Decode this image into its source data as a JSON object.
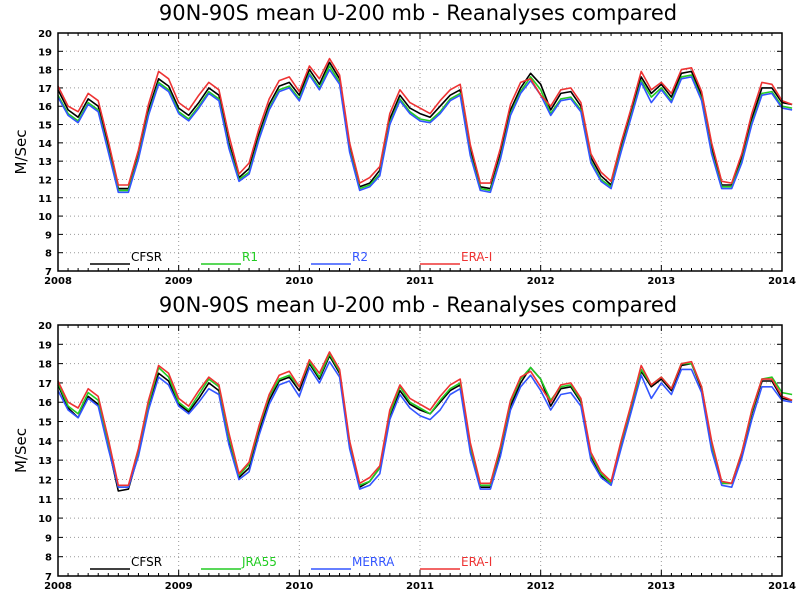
{
  "chart_data": [
    {
      "type": "line",
      "title": "90N-90S mean U-200 mb - Reanalyses compared",
      "xlabel": "",
      "ylabel": "M/Sec",
      "xlim": [
        2008.0,
        2014.0
      ],
      "ylim": [
        7,
        20
      ],
      "y_ticks": [
        7,
        8,
        9,
        10,
        11,
        12,
        13,
        14,
        15,
        16,
        17,
        18,
        19,
        20
      ],
      "x_ticks": [
        "2008",
        "2009",
        "2010",
        "2011",
        "2012",
        "2013",
        "2014"
      ],
      "grid": true,
      "legend_position": "bottom-left",
      "x_start": 2008.0,
      "x_step_months": 1,
      "series": [
        {
          "name": "CFSR",
          "color": "#000000",
          "values": [
            16.9,
            15.8,
            15.4,
            16.4,
            16.0,
            13.8,
            11.5,
            11.5,
            13.3,
            15.8,
            17.5,
            17.1,
            15.9,
            15.5,
            16.2,
            17.0,
            16.6,
            14.0,
            12.1,
            12.6,
            14.5,
            16.1,
            17.1,
            17.3,
            16.6,
            18.0,
            17.2,
            18.4,
            17.5,
            13.8,
            11.6,
            11.8,
            12.5,
            15.3,
            16.6,
            15.9,
            15.6,
            15.4,
            16.0,
            16.6,
            16.9,
            13.6,
            11.6,
            11.5,
            13.4,
            15.8,
            17.0,
            17.8,
            17.2,
            15.8,
            16.7,
            16.8,
            16.0,
            13.2,
            12.2,
            11.7,
            13.8,
            15.7,
            17.6,
            16.7,
            17.2,
            16.5,
            17.8,
            17.9,
            16.6,
            13.7,
            11.7,
            11.7,
            13.2,
            15.3,
            17.0,
            17.0,
            16.2,
            16.1
          ]
        },
        {
          "name": "R1",
          "color": "#22cc22",
          "values": [
            16.6,
            15.6,
            15.2,
            16.2,
            15.8,
            13.6,
            11.4,
            11.4,
            13.2,
            15.6,
            17.3,
            16.9,
            15.7,
            15.3,
            16.0,
            16.8,
            16.4,
            13.8,
            12.0,
            12.4,
            14.3,
            15.9,
            16.9,
            17.1,
            16.4,
            17.8,
            17.0,
            18.2,
            17.3,
            13.6,
            11.5,
            11.7,
            12.3,
            15.1,
            16.4,
            15.7,
            15.3,
            15.2,
            15.7,
            16.4,
            16.7,
            13.4,
            11.5,
            11.4,
            13.2,
            15.6,
            16.8,
            17.6,
            16.9,
            15.6,
            16.4,
            16.5,
            15.8,
            13.0,
            12.0,
            11.6,
            13.6,
            15.5,
            17.4,
            16.5,
            17.0,
            16.3,
            17.6,
            17.7,
            16.4,
            13.5,
            11.6,
            11.6,
            13.0,
            15.1,
            16.7,
            16.8,
            16.0,
            15.9
          ]
        },
        {
          "name": "R2",
          "color": "#3355ff",
          "values": [
            16.5,
            15.5,
            15.1,
            16.1,
            15.7,
            13.5,
            11.3,
            11.3,
            13.1,
            15.5,
            17.2,
            16.8,
            15.6,
            15.2,
            15.9,
            16.7,
            16.3,
            13.7,
            11.9,
            12.3,
            14.2,
            15.8,
            16.8,
            17.0,
            16.3,
            17.7,
            16.9,
            18.0,
            17.2,
            13.5,
            11.4,
            11.6,
            12.2,
            15.0,
            16.3,
            15.6,
            15.2,
            15.1,
            15.6,
            16.3,
            16.6,
            13.3,
            11.4,
            11.3,
            13.1,
            15.5,
            16.7,
            17.4,
            16.6,
            15.5,
            16.3,
            16.4,
            15.7,
            12.9,
            11.9,
            11.5,
            13.5,
            15.4,
            17.3,
            16.2,
            16.9,
            16.2,
            17.5,
            17.6,
            16.3,
            13.4,
            11.5,
            11.5,
            12.9,
            15.0,
            16.6,
            16.7,
            15.9,
            15.8
          ]
        },
        {
          "name": "ERA-I",
          "color": "#ee3333",
          "values": [
            17.1,
            16.0,
            15.7,
            16.7,
            16.3,
            14.1,
            11.7,
            11.7,
            13.6,
            16.1,
            17.9,
            17.5,
            16.2,
            15.8,
            16.6,
            17.3,
            16.9,
            14.4,
            12.3,
            12.9,
            14.8,
            16.4,
            17.4,
            17.6,
            16.8,
            18.2,
            17.5,
            18.6,
            17.7,
            14.0,
            11.8,
            12.1,
            12.7,
            15.6,
            16.9,
            16.2,
            15.9,
            15.6,
            16.3,
            16.9,
            17.2,
            13.9,
            11.8,
            11.8,
            13.7,
            16.1,
            17.3,
            17.5,
            16.6,
            16.0,
            16.9,
            17.0,
            16.2,
            13.4,
            12.4,
            11.9,
            14.0,
            15.9,
            17.9,
            16.9,
            17.3,
            16.7,
            18.0,
            18.1,
            16.8,
            14.0,
            11.9,
            11.8,
            13.4,
            15.6,
            17.3,
            17.2,
            16.3,
            16.1
          ]
        }
      ]
    },
    {
      "type": "line",
      "title": "90N-90S mean U-200 mb - Reanalyses compared",
      "xlabel": "",
      "ylabel": "M/Sec",
      "xlim": [
        2008.0,
        2014.0
      ],
      "ylim": [
        7,
        20
      ],
      "y_ticks": [
        7,
        8,
        9,
        10,
        11,
        12,
        13,
        14,
        15,
        16,
        17,
        18,
        19,
        20
      ],
      "x_ticks": [
        "2008",
        "2009",
        "2010",
        "2011",
        "2012",
        "2013",
        "2014"
      ],
      "grid": true,
      "legend_position": "bottom-left",
      "x_start": 2008.0,
      "x_step_months": 1,
      "series": [
        {
          "name": "CFSR",
          "color": "#000000",
          "values": [
            16.9,
            15.7,
            15.2,
            16.3,
            15.9,
            13.7,
            11.4,
            11.5,
            13.3,
            15.8,
            17.5,
            17.1,
            15.9,
            15.5,
            16.2,
            17.0,
            16.6,
            14.0,
            12.1,
            12.6,
            14.5,
            16.1,
            17.1,
            17.3,
            16.6,
            18.0,
            17.2,
            18.4,
            17.5,
            13.8,
            11.6,
            11.9,
            12.6,
            15.3,
            16.6,
            15.9,
            15.6,
            15.4,
            16.0,
            16.6,
            16.9,
            13.6,
            11.6,
            11.6,
            13.4,
            15.8,
            17.0,
            17.8,
            17.2,
            15.8,
            16.7,
            16.8,
            16.0,
            13.2,
            12.2,
            11.8,
            13.8,
            15.7,
            17.6,
            16.8,
            17.2,
            16.6,
            17.9,
            18.0,
            16.7,
            13.7,
            11.8,
            11.8,
            13.3,
            15.4,
            17.1,
            17.1,
            16.2,
            16.1
          ]
        },
        {
          "name": "JRA55",
          "color": "#22cc22",
          "values": [
            17.0,
            15.8,
            15.4,
            16.5,
            16.1,
            13.8,
            11.6,
            11.6,
            13.4,
            15.9,
            17.8,
            17.3,
            16.0,
            15.6,
            16.4,
            17.2,
            16.8,
            14.2,
            12.2,
            12.8,
            14.7,
            16.3,
            17.2,
            17.4,
            16.8,
            18.1,
            17.3,
            18.5,
            17.6,
            13.9,
            11.7,
            11.9,
            12.6,
            15.4,
            16.8,
            16.0,
            15.7,
            15.4,
            16.1,
            16.7,
            17.0,
            13.7,
            11.7,
            11.7,
            13.6,
            16.0,
            17.2,
            17.8,
            17.2,
            16.1,
            16.8,
            16.9,
            16.1,
            13.3,
            12.3,
            11.8,
            13.9,
            15.8,
            17.7,
            16.9,
            17.3,
            16.7,
            18.0,
            18.0,
            16.8,
            13.8,
            11.8,
            11.8,
            13.4,
            15.5,
            17.2,
            17.3,
            16.5,
            16.4
          ]
        },
        {
          "name": "MERRA",
          "color": "#3355ff",
          "values": [
            16.6,
            15.6,
            15.2,
            16.2,
            15.8,
            13.6,
            11.6,
            11.6,
            13.2,
            15.6,
            17.3,
            16.9,
            15.8,
            15.4,
            16.0,
            16.7,
            16.4,
            13.8,
            12.0,
            12.4,
            14.3,
            15.9,
            16.9,
            17.1,
            16.3,
            17.8,
            17.0,
            18.1,
            17.3,
            13.6,
            11.5,
            11.7,
            12.3,
            15.1,
            16.4,
            15.7,
            15.3,
            15.1,
            15.6,
            16.4,
            16.7,
            13.4,
            11.5,
            11.5,
            13.2,
            15.6,
            16.8,
            17.4,
            16.6,
            15.6,
            16.4,
            16.5,
            15.8,
            13.0,
            12.1,
            11.7,
            13.6,
            15.5,
            17.4,
            16.2,
            17.0,
            16.4,
            17.7,
            17.7,
            16.5,
            13.5,
            11.7,
            11.6,
            13.1,
            15.1,
            16.8,
            16.8,
            16.1,
            16.0
          ]
        },
        {
          "name": "ERA-I",
          "color": "#ee3333",
          "values": [
            17.1,
            16.0,
            15.7,
            16.7,
            16.3,
            14.1,
            11.7,
            11.7,
            13.6,
            16.1,
            17.9,
            17.5,
            16.2,
            15.8,
            16.6,
            17.3,
            16.9,
            14.4,
            12.3,
            12.9,
            14.8,
            16.4,
            17.4,
            17.6,
            16.8,
            18.2,
            17.5,
            18.6,
            17.7,
            14.0,
            11.8,
            12.1,
            12.7,
            15.6,
            16.9,
            16.2,
            15.9,
            15.6,
            16.3,
            16.9,
            17.2,
            13.9,
            11.8,
            11.8,
            13.7,
            16.1,
            17.3,
            17.6,
            16.8,
            16.0,
            16.9,
            17.0,
            16.2,
            13.4,
            12.4,
            11.9,
            14.0,
            15.9,
            17.9,
            16.9,
            17.3,
            16.7,
            18.0,
            18.1,
            16.8,
            14.0,
            11.9,
            11.8,
            13.4,
            15.6,
            17.2,
            17.2,
            16.3,
            16.1
          ]
        }
      ]
    }
  ]
}
